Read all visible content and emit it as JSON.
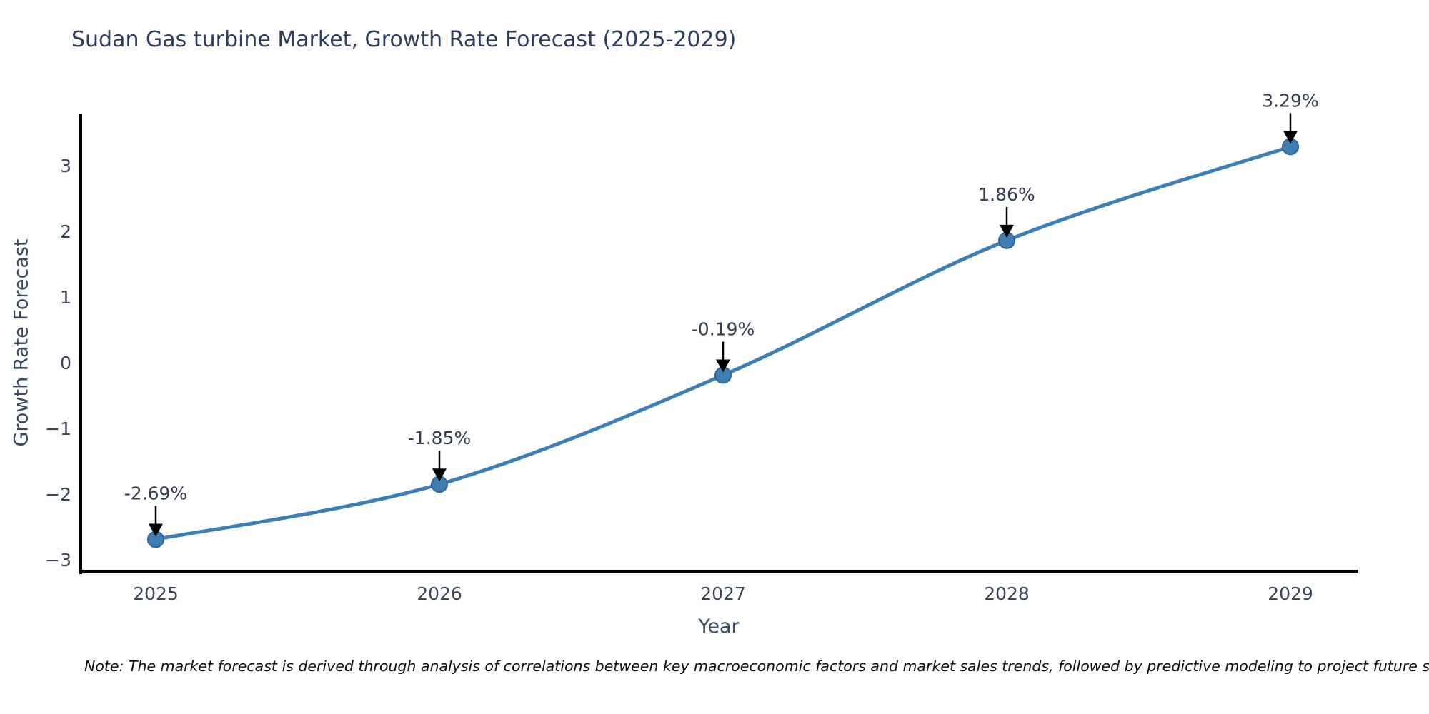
{
  "title": "Sudan Gas turbine Market, Growth Rate Forecast (2025-2029)",
  "footnote": "Note: The market forecast is derived through analysis of correlations between key macroeconomic factors and market sales trends, followed by predictive modeling to project future sales",
  "chart_data": {
    "type": "line",
    "title": "Sudan Gas turbine Market, Growth Rate Forecast (2025-2029)",
    "xlabel": "Year",
    "ylabel": "Growth Rate Forecast",
    "categories": [
      "2025",
      "2026",
      "2027",
      "2028",
      "2029"
    ],
    "series": [
      {
        "name": "Growth Rate Forecast",
        "values": [
          -2.69,
          -1.85,
          -0.19,
          1.86,
          3.29
        ],
        "point_labels": [
          "-2.69%",
          "-1.85%",
          "-0.19%",
          "1.86%",
          "3.29%"
        ]
      }
    ],
    "yticks": [
      3,
      2,
      1,
      0,
      -1,
      -2,
      -3
    ],
    "ylim": [
      -3.17,
      3.78
    ],
    "line_shape": "spline",
    "grid": false,
    "legend_position": "none",
    "annotations": "black downward arrows from each data label to its marker",
    "colors": {
      "line": "#3e7eb6",
      "marker_fill": "#3f7eb5",
      "marker_edge": "#2e6699",
      "arrow": "#000000",
      "spine": "#000000",
      "title_text": "#2d3e5f",
      "axis_text": "#3b4a63",
      "tick_text": "#3b4559"
    }
  }
}
